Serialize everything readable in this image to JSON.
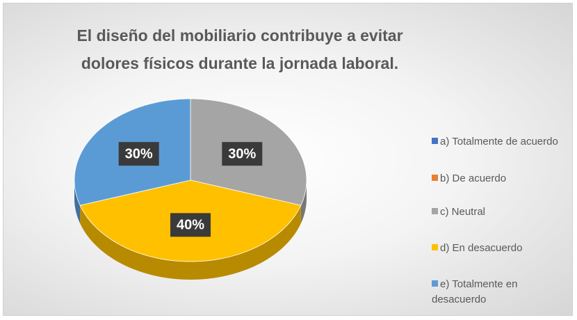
{
  "chart_data": {
    "type": "pie",
    "title": "El diseño del mobiliario contribuye a evitar dolores físicos durante la jornada laboral.",
    "categories": [
      "a) Totalmente de acuerdo",
      "b) De acuerdo",
      "c) Neutral",
      "d) En desacuerdo",
      "e) Totalmente en desacuerdo"
    ],
    "values": [
      0,
      0,
      30,
      40,
      30
    ],
    "value_labels": [
      null,
      null,
      "30%",
      "40%",
      "30%"
    ],
    "colors": [
      "#4472c4",
      "#ed7d31",
      "#a5a5a5",
      "#ffc000",
      "#5b9bd5"
    ],
    "legend": "right"
  }
}
